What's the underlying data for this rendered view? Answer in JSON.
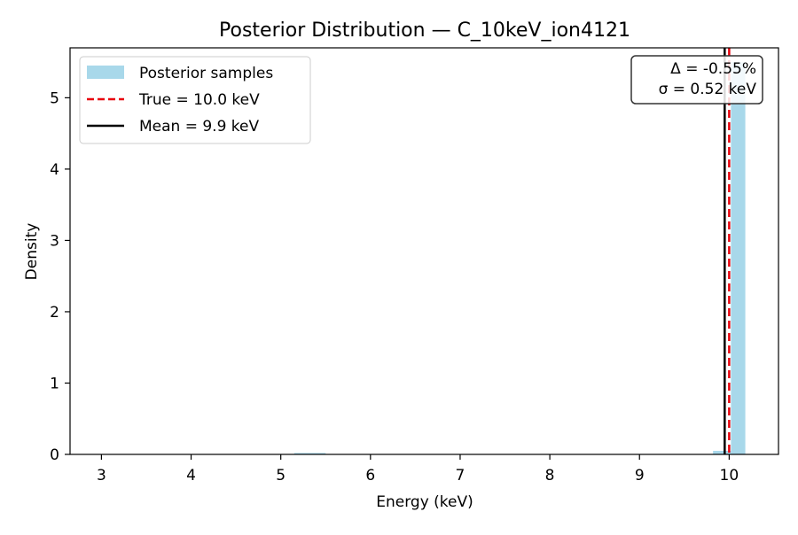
{
  "chart_data": {
    "type": "bar",
    "title": "Posterior Distribution — C_10keV_ion4121",
    "xlabel": "Energy (keV)",
    "ylabel": "Density",
    "xlim": [
      2.65,
      10.55
    ],
    "ylim": [
      0,
      5.7
    ],
    "x_ticks": [
      "3",
      "4",
      "5",
      "6",
      "7",
      "8",
      "9",
      "10"
    ],
    "y_ticks": [
      "0",
      "1",
      "2",
      "3",
      "4",
      "5"
    ],
    "grid": false,
    "legend_position": "top-left",
    "histogram": {
      "name": "Posterior samples",
      "color": "#a8d8ea",
      "bins": [
        {
          "x0": 5.15,
          "x1": 5.5,
          "density": 0.02
        },
        {
          "x0": 9.82,
          "x1": 10.02,
          "density": 0.05
        },
        {
          "x0": 10.02,
          "x1": 10.18,
          "density": 5.5
        }
      ]
    },
    "reference_lines": [
      {
        "name": "True = 10.0 keV",
        "value": 10.0,
        "color": "#e8000b",
        "style": "dashed"
      },
      {
        "name": "Mean = 9.9 keV",
        "value": 9.95,
        "color": "#000000",
        "style": "solid"
      }
    ],
    "annotation": {
      "lines": [
        "Δ = -0.55%",
        "σ = 0.52 keV"
      ],
      "position": "top-right"
    }
  }
}
